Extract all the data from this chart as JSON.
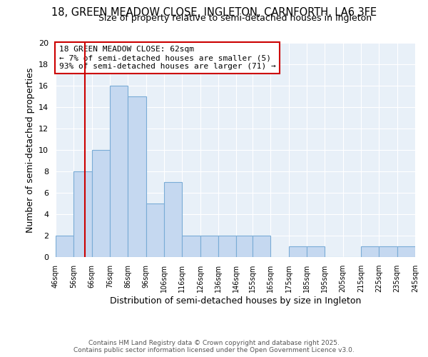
{
  "title_line1": "18, GREEN MEADOW CLOSE, INGLETON, CARNFORTH, LA6 3FE",
  "title_line2": "Size of property relative to semi-detached houses in Ingleton",
  "bin_edges": [
    46,
    56,
    66,
    76,
    86,
    96,
    106,
    116,
    126,
    136,
    146,
    155,
    165,
    175,
    185,
    195,
    205,
    215,
    225,
    235,
    245
  ],
  "bar_heights": [
    2,
    8,
    10,
    16,
    15,
    5,
    7,
    2,
    2,
    2,
    2,
    2,
    0,
    1,
    1,
    0,
    0,
    1,
    1,
    1
  ],
  "bar_color": "#c5d8f0",
  "bar_edgecolor": "#7aacd6",
  "property_size": 62,
  "red_line_color": "#cc0000",
  "xlabel": "Distribution of semi-detached houses by size in Ingleton",
  "ylabel": "Number of semi-detached properties",
  "ylim": [
    0,
    20
  ],
  "yticks": [
    0,
    2,
    4,
    6,
    8,
    10,
    12,
    14,
    16,
    18,
    20
  ],
  "annotation_title": "18 GREEN MEADOW CLOSE: 62sqm",
  "annotation_line2": "← 7% of semi-detached houses are smaller (5)",
  "annotation_line3": "93% of semi-detached houses are larger (71) →",
  "annotation_box_color": "#ffffff",
  "annotation_box_edgecolor": "#cc0000",
  "footer_line1": "Contains HM Land Registry data © Crown copyright and database right 2025.",
  "footer_line2": "Contains public sector information licensed under the Open Government Licence v3.0.",
  "background_color": "#ffffff",
  "plot_bg_color": "#e8f0f8",
  "grid_color": "#ffffff",
  "tick_labels": [
    "46sqm",
    "56sqm",
    "66sqm",
    "76sqm",
    "86sqm",
    "96sqm",
    "106sqm",
    "116sqm",
    "126sqm",
    "136sqm",
    "146sqm",
    "155sqm",
    "165sqm",
    "175sqm",
    "185sqm",
    "195sqm",
    "205sqm",
    "215sqm",
    "225sqm",
    "235sqm",
    "245sqm"
  ]
}
